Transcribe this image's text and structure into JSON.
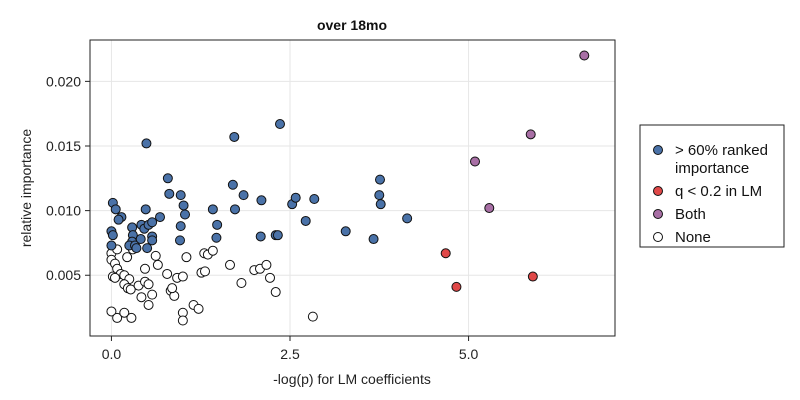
{
  "chart_data": {
    "type": "scatter",
    "title": "over 18mo",
    "xlabel": "-log(p) for LM coefficients",
    "ylabel": "relative importance",
    "xlim": [
      -0.3,
      7.05
    ],
    "ylim": [
      0.0003,
      0.0232
    ],
    "xticks": [
      0.0,
      2.5,
      5.0
    ],
    "xtick_labels": [
      "0.0",
      "2.5",
      "5.0"
    ],
    "yticks": [
      0.005,
      0.01,
      0.015,
      0.02
    ],
    "ytick_labels": [
      "0.005",
      "0.010",
      "0.015",
      "0.020"
    ],
    "grid": true,
    "legend_position": "right",
    "series": [
      {
        "name": "> 60% ranked importance",
        "legend_lines": [
          "> 60% ranked",
          "importance"
        ],
        "color": "#4a72a8",
        "points": [
          [
            0.49,
            0.0152
          ],
          [
            0.79,
            0.0125
          ],
          [
            0.81,
            0.0113
          ],
          [
            0.97,
            0.0112
          ],
          [
            0.68,
            0.0095
          ],
          [
            1.01,
            0.0104
          ],
          [
            1.03,
            0.0097
          ],
          [
            0.97,
            0.0088
          ],
          [
            0.96,
            0.0077
          ],
          [
            1.42,
            0.0101
          ],
          [
            1.48,
            0.0089
          ],
          [
            1.47,
            0.0079
          ],
          [
            1.7,
            0.012
          ],
          [
            1.72,
            0.0157
          ],
          [
            1.73,
            0.0101
          ],
          [
            1.85,
            0.0112
          ],
          [
            2.1,
            0.0108
          ],
          [
            2.09,
            0.008
          ],
          [
            2.3,
            0.0081
          ],
          [
            2.33,
            0.0081
          ],
          [
            2.36,
            0.0167
          ],
          [
            2.53,
            0.0105
          ],
          [
            2.58,
            0.011
          ],
          [
            2.72,
            0.0092
          ],
          [
            2.84,
            0.0109
          ],
          [
            3.28,
            0.0084
          ],
          [
            3.67,
            0.0078
          ],
          [
            3.76,
            0.0124
          ],
          [
            3.75,
            0.0112
          ],
          [
            3.77,
            0.0105
          ],
          [
            4.14,
            0.0094
          ],
          [
            0.02,
            0.0106
          ],
          [
            0.06,
            0.0101
          ],
          [
            0.14,
            0.0095
          ],
          [
            0.1,
            0.0093
          ],
          [
            0.0,
            0.0084
          ],
          [
            0.02,
            0.0081
          ],
          [
            0.0,
            0.0073
          ],
          [
            0.29,
            0.0087
          ],
          [
            0.3,
            0.0081
          ],
          [
            0.29,
            0.0076
          ],
          [
            0.25,
            0.0073
          ],
          [
            0.33,
            0.0073
          ],
          [
            0.42,
            0.0089
          ],
          [
            0.41,
            0.0078
          ],
          [
            0.46,
            0.0086
          ],
          [
            0.48,
            0.0101
          ],
          [
            0.52,
            0.0089
          ],
          [
            0.57,
            0.0091
          ],
          [
            0.5,
            0.0071
          ],
          [
            0.57,
            0.008
          ],
          [
            0.57,
            0.0077
          ],
          [
            0.35,
            0.0071
          ]
        ]
      },
      {
        "name": "q < 0.2 in LM",
        "legend_lines": [
          "q < 0.2 in LM"
        ],
        "color": "#e04848",
        "points": [
          [
            4.68,
            0.0067
          ],
          [
            4.83,
            0.0041
          ],
          [
            5.9,
            0.0049
          ]
        ]
      },
      {
        "name": "Both",
        "legend_lines": [
          "Both"
        ],
        "color": "#a86fa5",
        "points": [
          [
            6.62,
            0.022
          ],
          [
            5.87,
            0.0159
          ],
          [
            5.09,
            0.0138
          ],
          [
            5.29,
            0.0102
          ]
        ]
      },
      {
        "name": "None",
        "legend_lines": [
          "None"
        ],
        "color": "#ffffff",
        "points": [
          [
            0.0,
            0.0067
          ],
          [
            0.08,
            0.007
          ],
          [
            0.0,
            0.0062
          ],
          [
            0.05,
            0.0059
          ],
          [
            0.08,
            0.0055
          ],
          [
            0.13,
            0.0051
          ],
          [
            0.18,
            0.005
          ],
          [
            0.25,
            0.0047
          ],
          [
            0.22,
            0.0064
          ],
          [
            0.02,
            0.0049
          ],
          [
            0.05,
            0.0048
          ],
          [
            0.18,
            0.0043
          ],
          [
            0.23,
            0.004
          ],
          [
            0.27,
            0.0039
          ],
          [
            0.38,
            0.0042
          ],
          [
            0.42,
            0.0033
          ],
          [
            0.47,
            0.0045
          ],
          [
            0.52,
            0.0043
          ],
          [
            0.57,
            0.0035
          ],
          [
            0.47,
            0.0055
          ],
          [
            0.62,
            0.0065
          ],
          [
            0.65,
            0.0058
          ],
          [
            0.78,
            0.0051
          ],
          [
            0.83,
            0.0038
          ],
          [
            0.88,
            0.0034
          ],
          [
            0.85,
            0.004
          ],
          [
            0.92,
            0.0048
          ],
          [
            1.0,
            0.0049
          ],
          [
            1.05,
            0.0064
          ],
          [
            1.0,
            0.0021
          ],
          [
            1.0,
            0.0015
          ],
          [
            1.15,
            0.0027
          ],
          [
            1.22,
            0.0024
          ],
          [
            1.26,
            0.0052
          ],
          [
            1.31,
            0.0053
          ],
          [
            1.3,
            0.0067
          ],
          [
            1.35,
            0.0066
          ],
          [
            1.42,
            0.0069
          ],
          [
            1.66,
            0.0058
          ],
          [
            1.82,
            0.0044
          ],
          [
            2.0,
            0.0054
          ],
          [
            2.08,
            0.0055
          ],
          [
            2.17,
            0.0058
          ],
          [
            2.22,
            0.0048
          ],
          [
            2.3,
            0.0037
          ],
          [
            2.82,
            0.0018
          ],
          [
            0.0,
            0.0022
          ],
          [
            0.08,
            0.0017
          ],
          [
            0.18,
            0.0021
          ],
          [
            0.28,
            0.0017
          ],
          [
            0.52,
            0.0027
          ],
          [
            0.3,
            0.007
          ]
        ]
      }
    ]
  }
}
